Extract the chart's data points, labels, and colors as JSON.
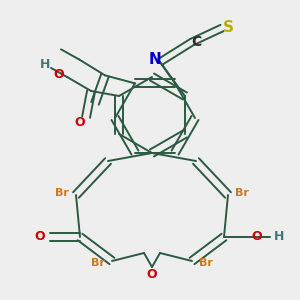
{
  "background_color": "#eeeeee",
  "bond_color": "#2a5a40",
  "bond_lw": 1.4,
  "dbo": 0.01,
  "figsize": [
    3.0,
    3.0
  ],
  "dpi": 100,
  "colors": {
    "S": "#b8b000",
    "C": "#2a2a2a",
    "N": "#0000cc",
    "O": "#cc0000",
    "H": "#407878",
    "Br": "#cc7722",
    "bond": "#2a5a40"
  }
}
